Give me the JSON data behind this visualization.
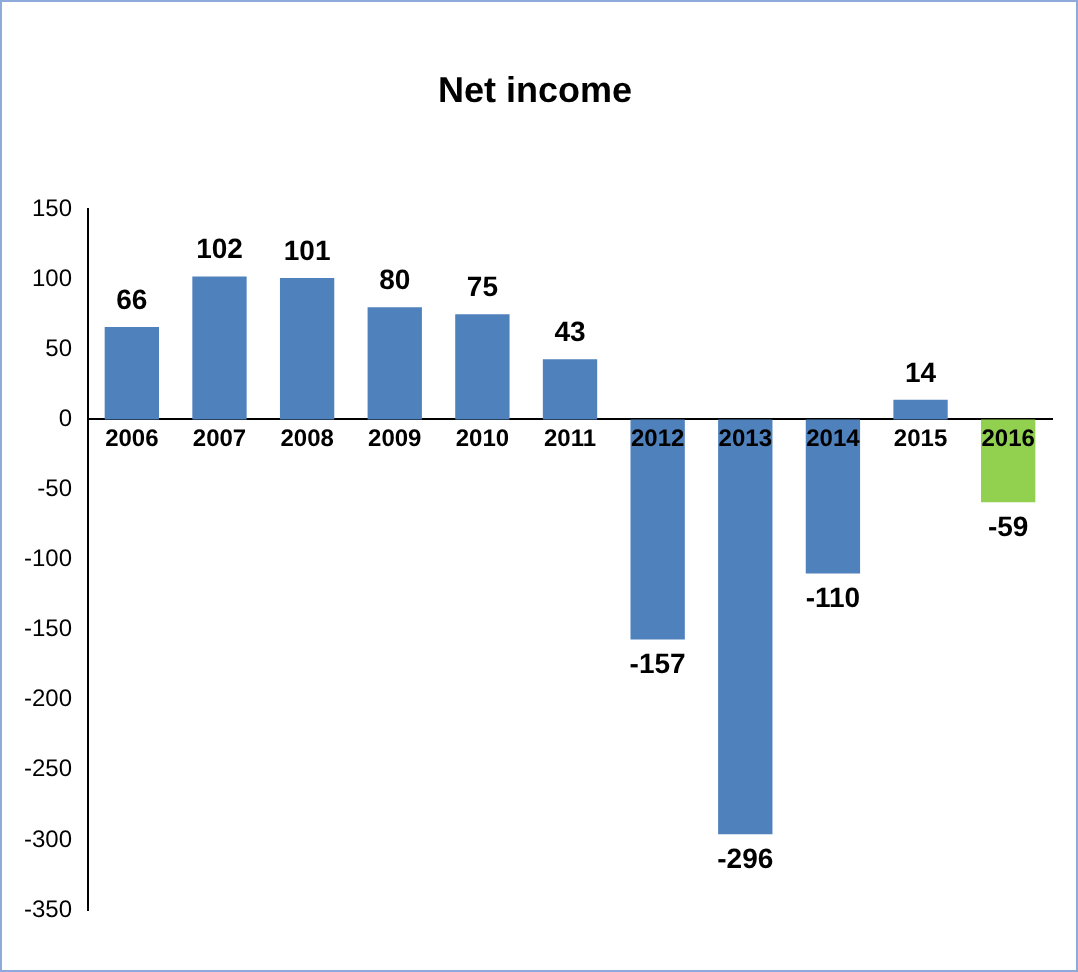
{
  "chart_data": {
    "type": "bar",
    "title": "Net income",
    "categories": [
      "2006",
      "2007",
      "2008",
      "2009",
      "2010",
      "2011",
      "2012",
      "2013",
      "2014",
      "2015",
      "2016"
    ],
    "values": [
      66,
      102,
      101,
      80,
      75,
      43,
      -157,
      -296,
      -110,
      14,
      -59
    ],
    "colors": [
      "#4f81bd",
      "#4f81bd",
      "#4f81bd",
      "#4f81bd",
      "#4f81bd",
      "#4f81bd",
      "#4f81bd",
      "#4f81bd",
      "#4f81bd",
      "#4f81bd",
      "#92d050"
    ],
    "ylim": [
      -350,
      150
    ],
    "yticks": [
      -350,
      -300,
      -250,
      -200,
      -150,
      -100,
      -50,
      0,
      50,
      100,
      150
    ],
    "data_labels": true,
    "grid": false,
    "legend": false
  }
}
